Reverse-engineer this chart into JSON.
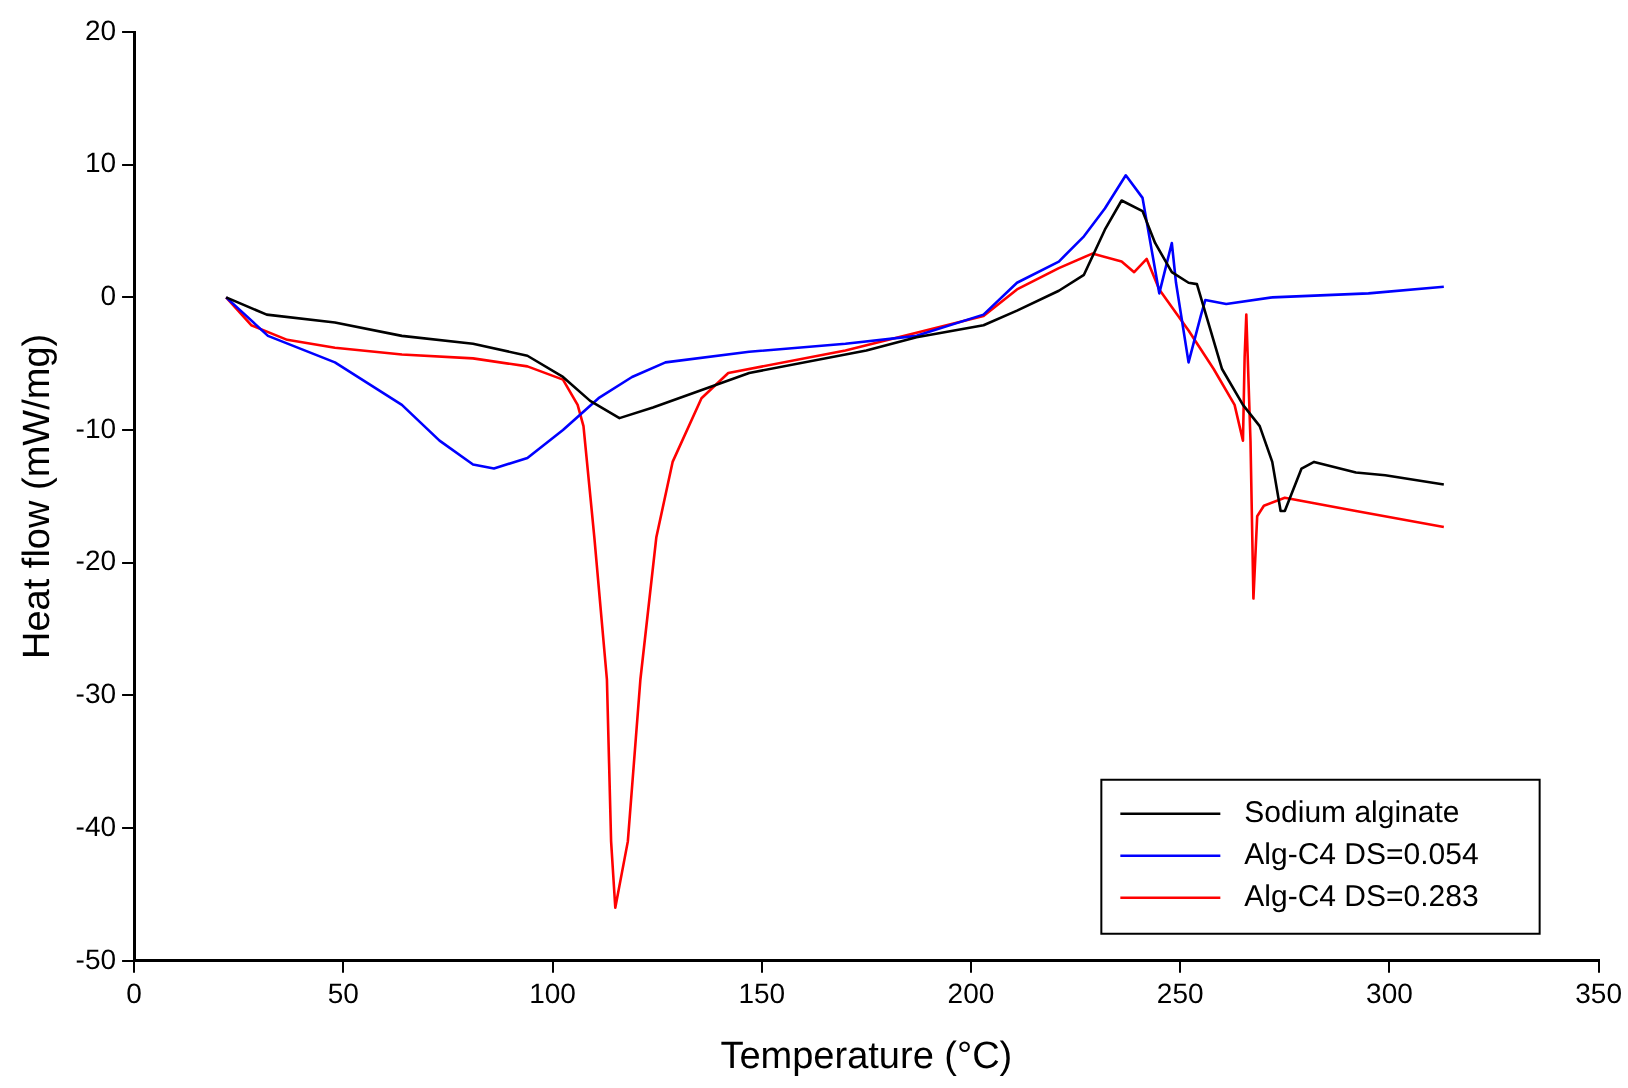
{
  "chart_data": {
    "type": "line",
    "xlabel": "Temperature (°C)",
    "ylabel": "Heat flow (mW/mg)",
    "xlim": [
      0,
      350
    ],
    "xticks": [
      0,
      50,
      100,
      150,
      200,
      250,
      300,
      350
    ],
    "ylim": [
      -50,
      20
    ],
    "yticks": [
      -50,
      -40,
      -30,
      -20,
      -10,
      0,
      10,
      20
    ],
    "grid": false,
    "legend": "bottom right",
    "marker": "none",
    "line_style": "solid",
    "series": [
      {
        "name": "Sodium alginate",
        "color": "#000000",
        "x": [
          22,
          31.7,
          48,
          64,
          81,
          94,
          102.5,
          109,
          116,
          124,
          147,
          175,
          187,
          203,
          211,
          221,
          227,
          232,
          236,
          241,
          244,
          248,
          252,
          254,
          257,
          260,
          265,
          269,
          272,
          274,
          275,
          279,
          282,
          292,
          299,
          313
        ],
        "values": [
          0,
          -1.3,
          -1.9,
          -2.9,
          -3.5,
          -4.4,
          -6,
          -7.8,
          -9.1,
          -8.3,
          -5.7,
          -4,
          -3,
          -2.1,
          -1,
          0.5,
          1.7,
          5.1,
          7.3,
          6.5,
          4.1,
          1.9,
          1.1,
          1,
          -2.2,
          -5.4,
          -8.1,
          -9.7,
          -12.4,
          -16.1,
          -16.1,
          -12.9,
          -12.4,
          -13.2,
          -13.4,
          -14.1
        ]
      },
      {
        "name": "Alg-C4 DS=0.054",
        "color": "#0000ff",
        "x": [
          22,
          32,
          48,
          64,
          73,
          81,
          86,
          94,
          102.5,
          111,
          119,
          127,
          147,
          170,
          187,
          203,
          211,
          221,
          227,
          232,
          237,
          241,
          245,
          248,
          249,
          252,
          255,
          256,
          261,
          272,
          295,
          313
        ],
        "values": [
          0,
          -2.9,
          -4.9,
          -8.1,
          -10.8,
          -12.6,
          -12.9,
          -12.1,
          -10,
          -7.6,
          -6,
          -4.9,
          -4.1,
          -3.5,
          -2.9,
          -1.3,
          1.1,
          2.7,
          4.6,
          6.7,
          9.2,
          7.5,
          0.3,
          4.1,
          1.1,
          -4.9,
          -1.3,
          -0.2,
          -0.5,
          0,
          0.3,
          0.8
        ]
      },
      {
        "name": "Alg-C4 DS=0.283",
        "color": "#ff0000",
        "x": [
          22,
          28,
          36.6,
          48,
          64,
          81,
          94,
          102.5,
          106,
          107.4,
          110,
          113,
          114,
          115,
          118,
          121,
          124.8,
          128.7,
          135.6,
          142,
          170,
          203,
          211,
          221,
          229,
          236,
          239,
          242,
          245,
          252,
          258,
          263,
          265,
          265.4,
          265.8,
          266.8,
          267.5,
          268.4,
          270,
          275,
          292,
          313
        ],
        "values": [
          0,
          -2.1,
          -3.2,
          -3.8,
          -4.3,
          -4.6,
          -5.2,
          -6.2,
          -8.1,
          -9.7,
          -18.1,
          -28.8,
          -41,
          -46,
          -41,
          -28.8,
          -18.1,
          -12.4,
          -7.6,
          -5.7,
          -4,
          -1.4,
          0.6,
          2.2,
          3.3,
          2.7,
          1.9,
          2.9,
          0.6,
          -2.5,
          -5.4,
          -8.1,
          -10.8,
          -4.5,
          -1.3,
          -10.8,
          -22.7,
          -16.5,
          -15.7,
          -15.1,
          -16.1,
          -17.3
        ]
      }
    ]
  }
}
